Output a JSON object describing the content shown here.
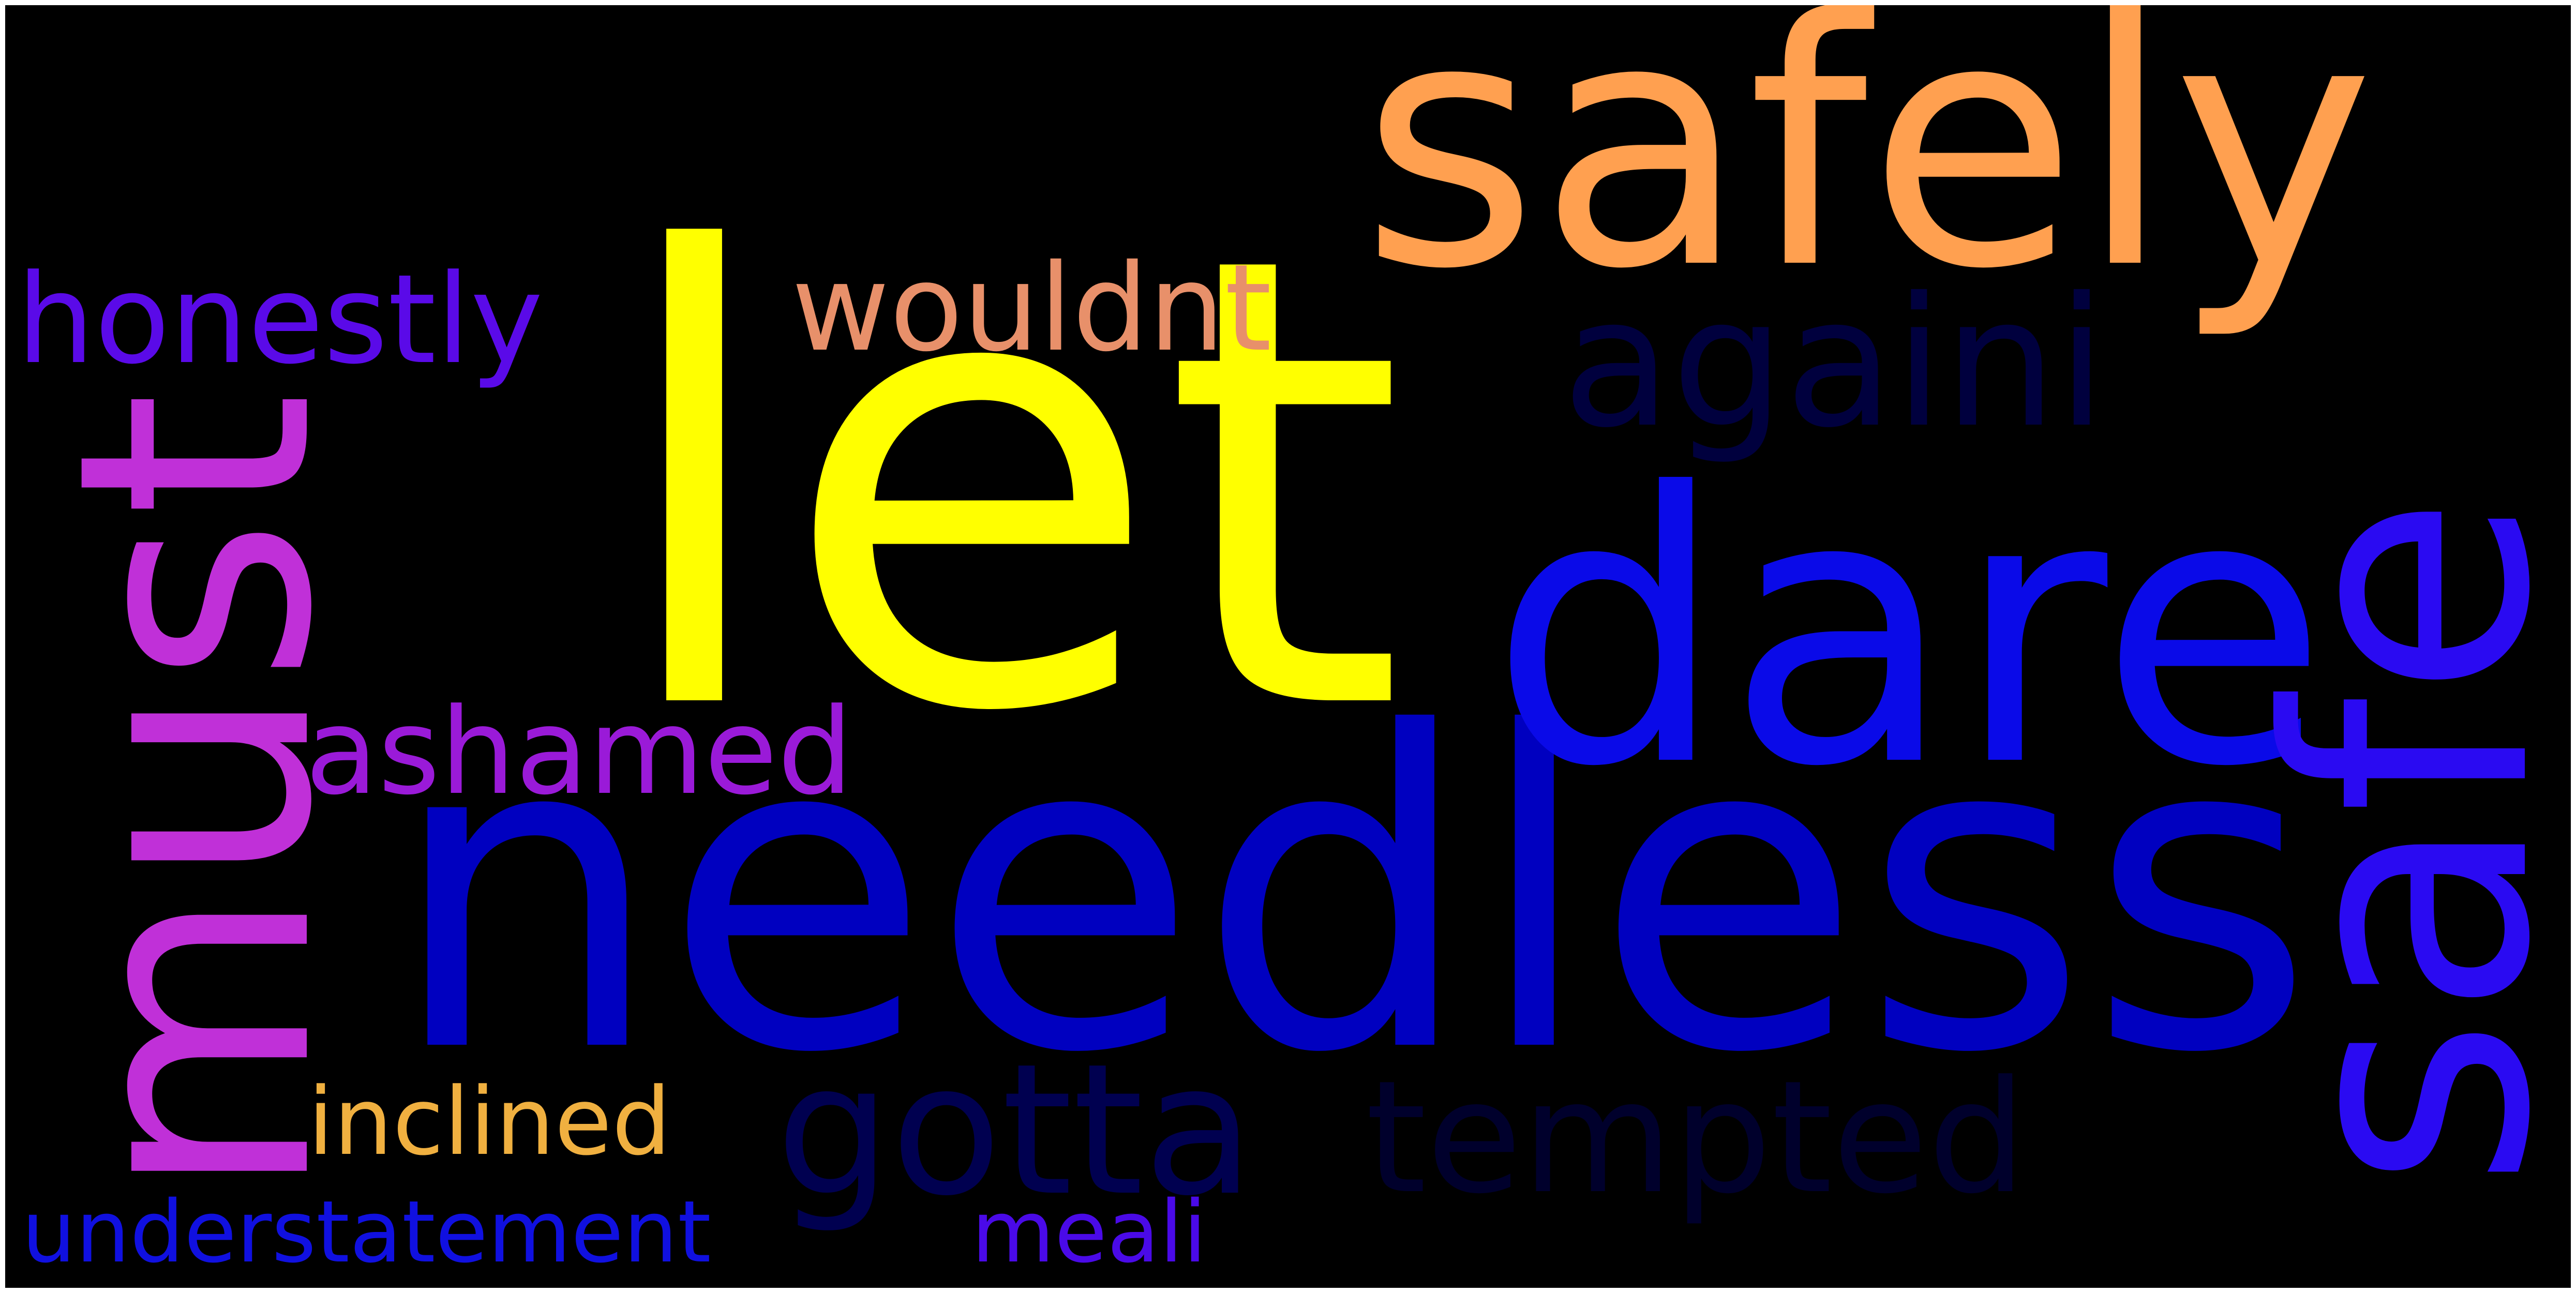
{
  "wordcloud": {
    "background": "#000000",
    "words": [
      {
        "text": "let",
        "color": "#ffff00"
      },
      {
        "text": "needless",
        "color": "#0000c0"
      },
      {
        "text": "safely",
        "color": "#ffa050"
      },
      {
        "text": "dare",
        "color": "#0a0ae8"
      },
      {
        "text": "must",
        "color": "#c030d8"
      },
      {
        "text": "safe",
        "color": "#2a0af2"
      },
      {
        "text": "againi",
        "color": "#00003e"
      },
      {
        "text": "gotta",
        "color": "#000050"
      },
      {
        "text": "tempted",
        "color": "#00002c"
      },
      {
        "text": "honestly",
        "color": "#5a0ae8"
      },
      {
        "text": "wouldnt",
        "color": "#e8906a"
      },
      {
        "text": "ashamed",
        "color": "#9a1ad8"
      },
      {
        "text": "inclined",
        "color": "#f0b040"
      },
      {
        "text": "understatement",
        "color": "#1010e0"
      },
      {
        "text": "meali",
        "color": "#4a0ae8"
      }
    ]
  }
}
